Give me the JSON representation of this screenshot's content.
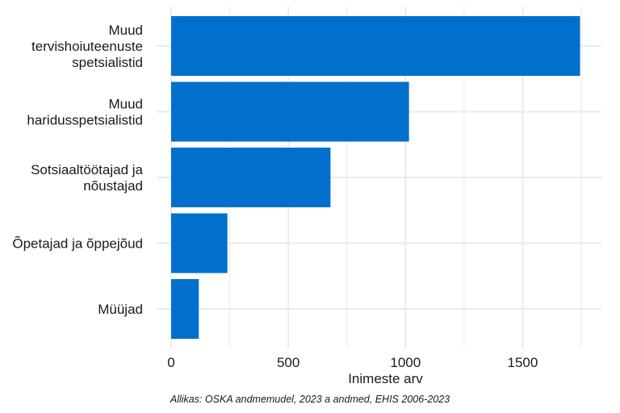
{
  "chart_data": {
    "type": "bar",
    "orientation": "horizontal",
    "categories": [
      [
        "Muud",
        "tervishoiuteenuste",
        "spetsialistid"
      ],
      [
        "Muud",
        "haridusspetsialistid"
      ],
      [
        "Sotsiaaltöötajad ja",
        "nõustajad"
      ],
      [
        "Õpetajad ja õppejõud"
      ],
      [
        "Müüjad"
      ]
    ],
    "values": [
      1745,
      1015,
      680,
      240,
      118
    ],
    "xlabel": "Inimeste arv",
    "ylabel": "",
    "xlim": [
      0,
      1800
    ],
    "xticks": [
      0,
      500,
      1000,
      1500
    ],
    "grid": true,
    "bar_color": "#0070CC",
    "grid_color": "#EBEBEB"
  },
  "caption": "Allikas: OSKA andmemudel, 2023 a andmed, EHIS 2006-2023"
}
